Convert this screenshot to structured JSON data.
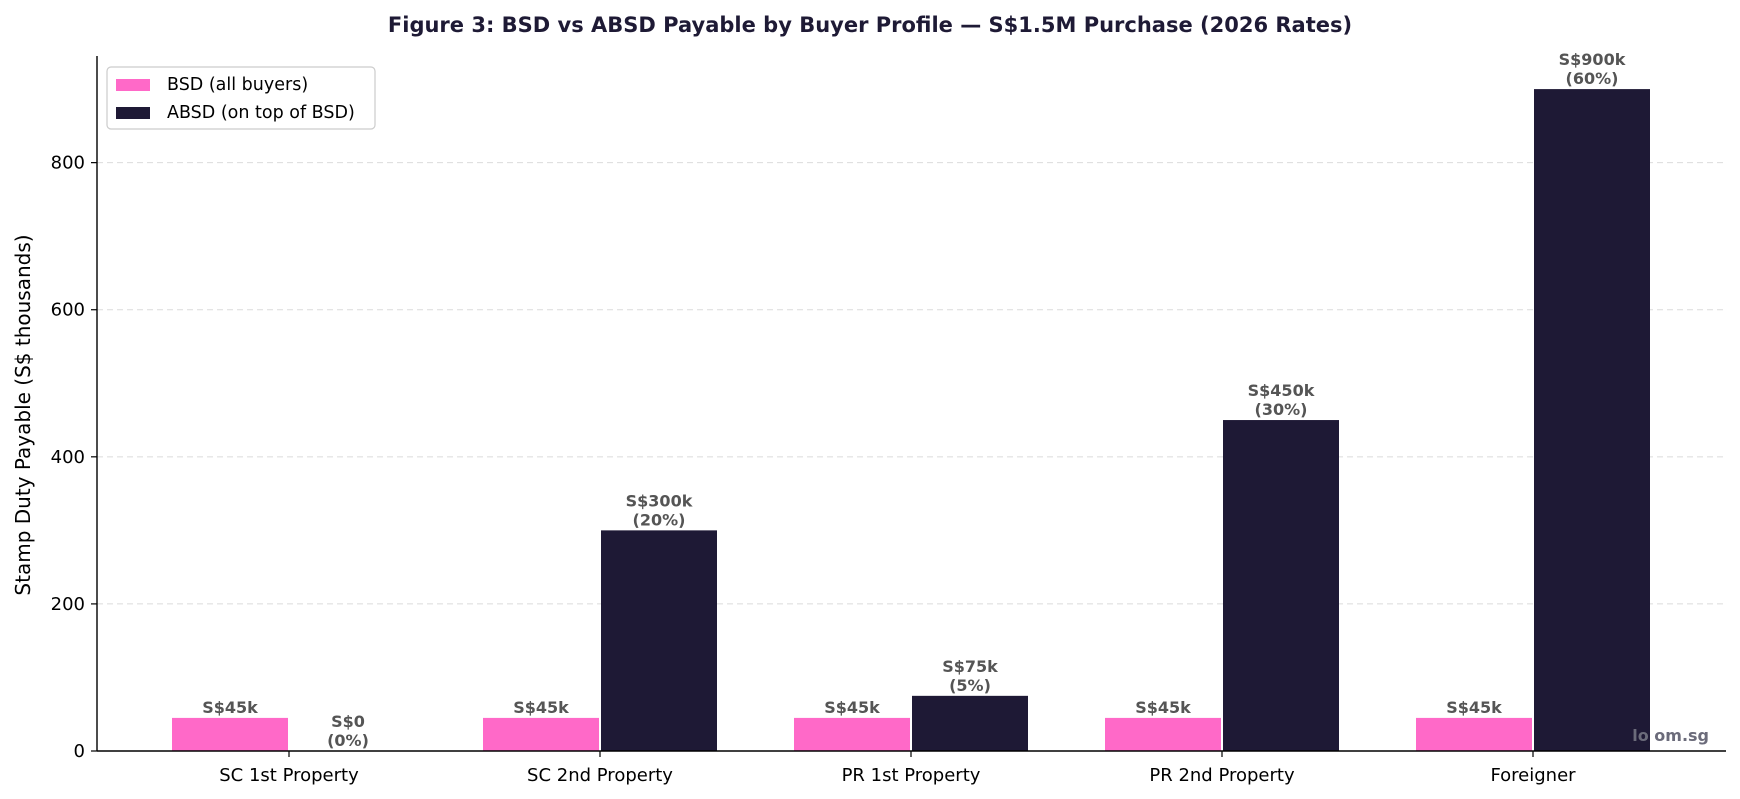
{
  "chart_data": {
    "type": "bar",
    "title": "Figure 3: BSD vs ABSD Payable by Buyer Profile — S$1.5M Purchase (2026 Rates)",
    "xlabel": "",
    "ylabel": "Stamp Duty Payable (S$ thousands)",
    "categories": [
      "SC 1st Property",
      "SC 2nd Property",
      "PR 1st Property",
      "PR 2nd Property",
      "Foreigner"
    ],
    "ylim": [
      0,
      945
    ],
    "yticks": [
      0,
      200,
      400,
      600,
      800
    ],
    "grid": "y-dashed",
    "legend_position": "top-left",
    "series": [
      {
        "name": "BSD (all buyers)",
        "color": "#ff69c8",
        "values": [
          45,
          45,
          45,
          45,
          45
        ],
        "labels": [
          "S$45k",
          "S$45k",
          "S$45k",
          "S$45k",
          "S$45k"
        ]
      },
      {
        "name": "ABSD (on top of BSD)",
        "color": "#1e1935",
        "values": [
          0,
          300,
          75,
          450,
          900
        ],
        "labels": [
          "S$0",
          "S$300k",
          "S$75k",
          "S$450k",
          "S$900k"
        ],
        "sublabels": [
          "(0%)",
          "(20%)",
          "(5%)",
          "(30%)",
          "(60%)"
        ]
      }
    ]
  },
  "watermark": "lo            om.sg"
}
